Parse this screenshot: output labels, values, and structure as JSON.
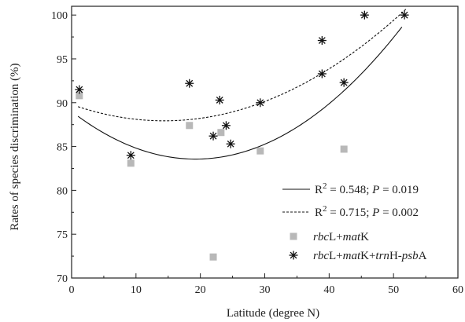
{
  "chart_data": {
    "type": "scatter",
    "xlabel": "Latitude (degree N)",
    "ylabel": "Rates of species discrimination (%)",
    "xlim": [
      0,
      60
    ],
    "ylim": [
      70,
      101
    ],
    "x_ticks": [
      0,
      10,
      20,
      30,
      40,
      50,
      60
    ],
    "y_ticks": [
      70,
      75,
      80,
      85,
      90,
      95,
      100
    ],
    "grid": false,
    "legend_position": "bottom-right",
    "series": [
      {
        "name": "rbcL+matK",
        "marker": "square",
        "color": "#b8b8b8",
        "points": [
          {
            "x": 1.2,
            "y": 90.8
          },
          {
            "x": 9.2,
            "y": 83.1
          },
          {
            "x": 18.3,
            "y": 87.4
          },
          {
            "x": 22.0,
            "y": 72.4
          },
          {
            "x": 23.2,
            "y": 86.6
          },
          {
            "x": 29.3,
            "y": 84.5
          },
          {
            "x": 42.3,
            "y": 84.7
          }
        ]
      },
      {
        "name": "rbcL+matK+trnH-psbA",
        "marker": "asterisk",
        "color": "#111111",
        "points": [
          {
            "x": 1.2,
            "y": 91.5
          },
          {
            "x": 9.2,
            "y": 84.0
          },
          {
            "x": 18.3,
            "y": 92.2
          },
          {
            "x": 22.0,
            "y": 86.2
          },
          {
            "x": 23.0,
            "y": 90.3
          },
          {
            "x": 24.0,
            "y": 87.4
          },
          {
            "x": 24.7,
            "y": 85.3
          },
          {
            "x": 29.3,
            "y": 90.0
          },
          {
            "x": 38.9,
            "y": 93.3
          },
          {
            "x": 38.9,
            "y": 97.1
          },
          {
            "x": 42.3,
            "y": 92.3
          },
          {
            "x": 45.5,
            "y": 100.0
          },
          {
            "x": 51.7,
            "y": 100.0
          }
        ]
      }
    ],
    "fits": [
      {
        "style": "solid",
        "r2_text": "0.548",
        "p_text": "0.019",
        "coef": [
          89.0,
          -0.5645,
          0.014665
        ],
        "x_range": [
          1.0,
          51.3
        ]
      },
      {
        "style": "dashed",
        "r2_text": "0.715",
        "p_text": "0.002",
        "coef": [
          89.8,
          -0.2596,
          0.009031
        ],
        "x_range": [
          1.0,
          52.0
        ]
      }
    ],
    "legend": [
      {
        "kind": "line",
        "style": "solid",
        "prefix": "R",
        "sup": "2",
        "mid": " = 0.548; ",
        "pvar": "P",
        "tail": " = 0.019"
      },
      {
        "kind": "line",
        "style": "dashed",
        "prefix": "R",
        "sup": "2",
        "mid": " = 0.715; ",
        "pvar": "P",
        "tail": " = 0.002"
      },
      {
        "kind": "square",
        "parts": [
          {
            "t": "rbc",
            "i": true
          },
          {
            "t": "L+",
            "i": false
          },
          {
            "t": "mat",
            "i": true
          },
          {
            "t": "K",
            "i": false
          }
        ]
      },
      {
        "kind": "asterisk",
        "parts": [
          {
            "t": "rbc",
            "i": true
          },
          {
            "t": "L+",
            "i": false
          },
          {
            "t": "mat",
            "i": true
          },
          {
            "t": "K+",
            "i": false
          },
          {
            "t": "trn",
            "i": true
          },
          {
            "t": "H-",
            "i": false
          },
          {
            "t": "psb",
            "i": true
          },
          {
            "t": "A",
            "i": false
          }
        ]
      }
    ]
  }
}
